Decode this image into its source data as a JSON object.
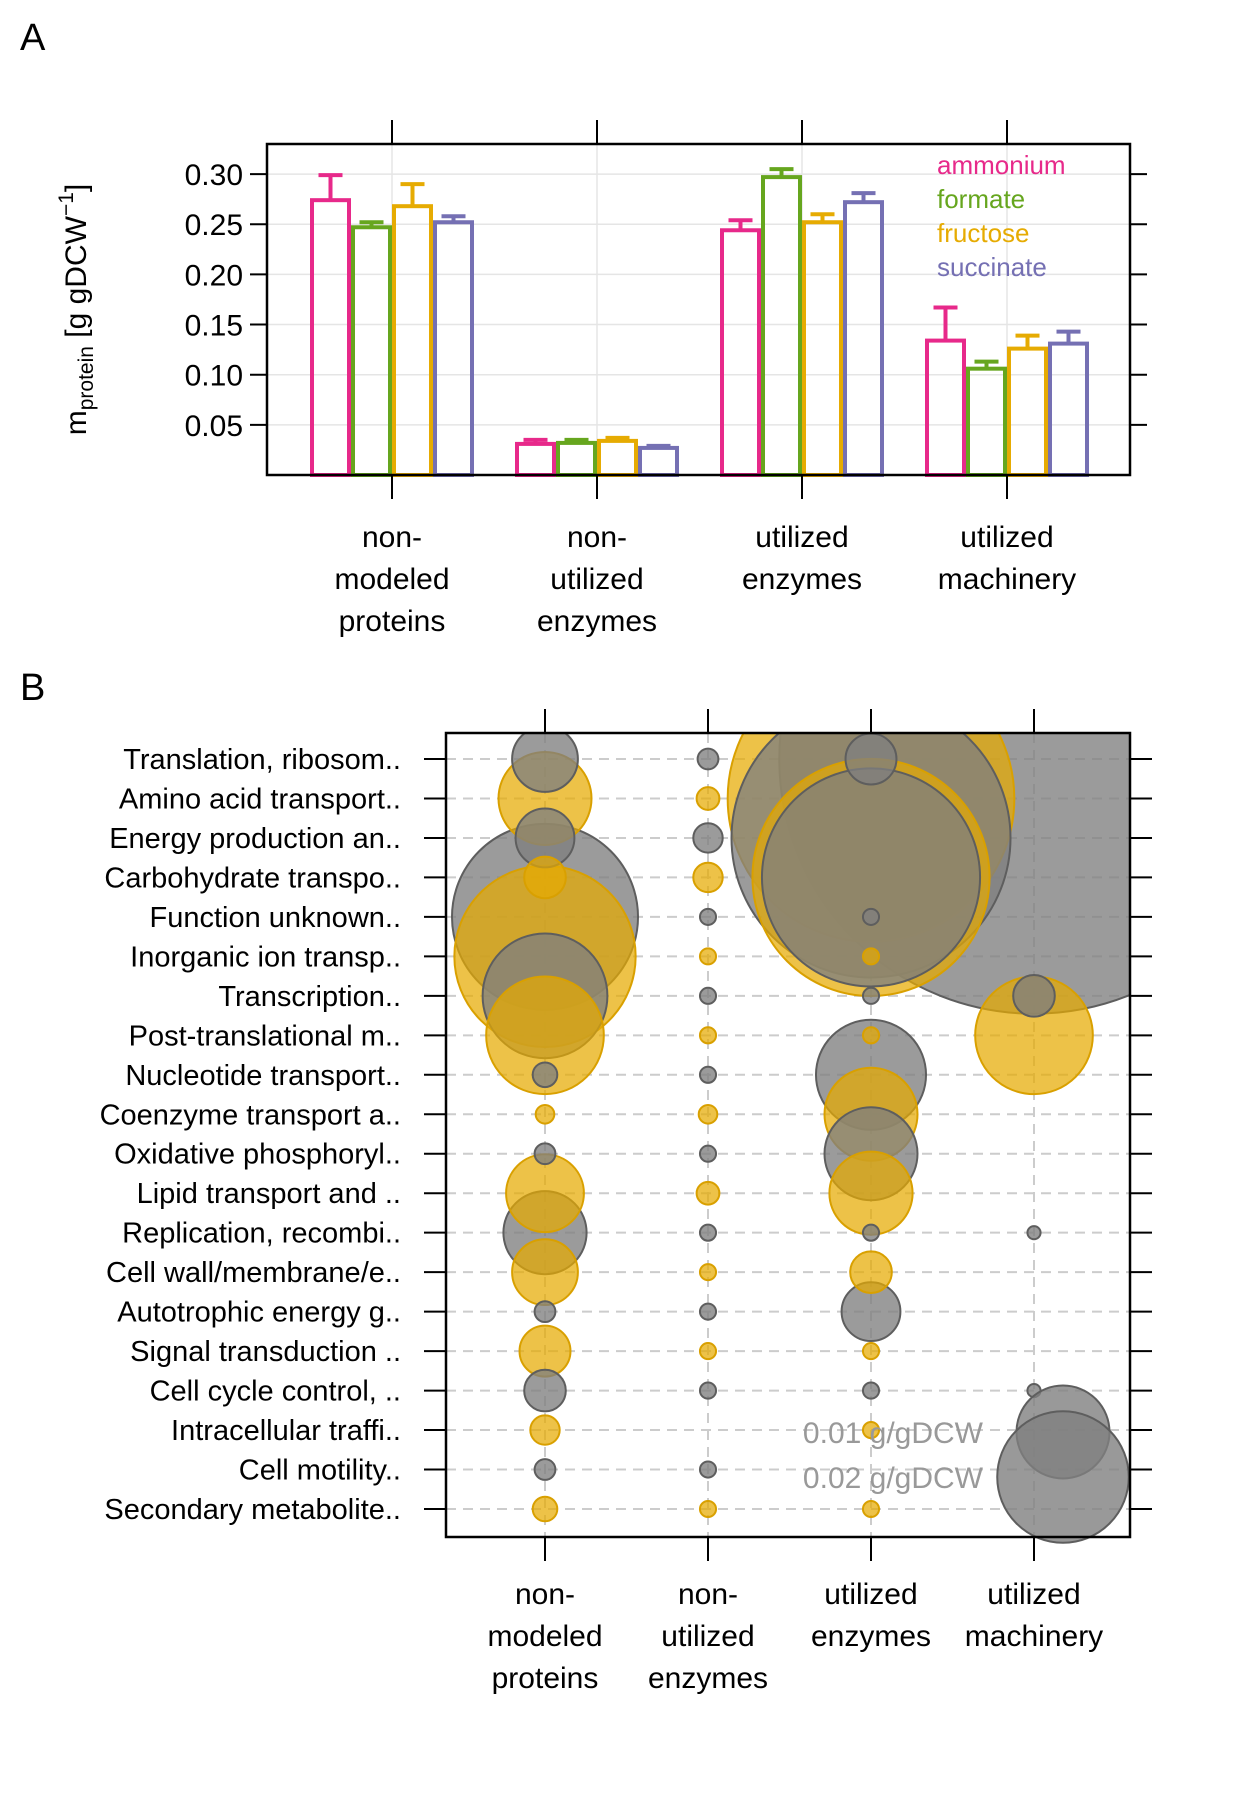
{
  "panels": {
    "a_label": "A",
    "b_label": "B"
  },
  "chart_data": [
    {
      "type": "bar",
      "panel": "A",
      "ylabel": {
        "main": "m",
        "sub": "protein",
        "unit_prefix": " [g gDCW",
        "unit_sup": "−1",
        "unit_suffix": "]"
      },
      "ylim": [
        0,
        0.33
      ],
      "yticks": [
        "0.05",
        "0.10",
        "0.15",
        "0.20",
        "0.25",
        "0.30"
      ],
      "grid": true,
      "legend_position": "top-right",
      "categories": [
        [
          "non-",
          "modeled",
          "proteins"
        ],
        [
          "non-",
          "utilized",
          "enzymes"
        ],
        [
          "utilized",
          "enzymes"
        ],
        [
          "utilized",
          "machinery"
        ]
      ],
      "series": [
        {
          "name": "ammonium",
          "color": "#e7298a",
          "values": [
            0.274,
            0.031,
            0.244,
            0.134
          ],
          "errors": [
            0.025,
            0.004,
            0.01,
            0.033
          ]
        },
        {
          "name": "formate",
          "color": "#66a61e",
          "values": [
            0.247,
            0.032,
            0.297,
            0.106
          ],
          "errors": [
            0.005,
            0.003,
            0.008,
            0.007
          ]
        },
        {
          "name": "fructose",
          "color": "#e6ab02",
          "values": [
            0.268,
            0.034,
            0.252,
            0.126
          ],
          "errors": [
            0.022,
            0.003,
            0.008,
            0.013
          ]
        },
        {
          "name": "succinate",
          "color": "#7570b3",
          "values": [
            0.252,
            0.027,
            0.272,
            0.131
          ],
          "errors": [
            0.006,
            0.002,
            0.009,
            0.012
          ]
        }
      ]
    },
    {
      "type": "scatter",
      "subtype": "bubble",
      "panel": "B",
      "grid": true,
      "x_categories": [
        [
          "non-",
          "modeled",
          "proteins"
        ],
        [
          "non-",
          "utilized",
          "enzymes"
        ],
        [
          "utilized",
          "enzymes"
        ],
        [
          "utilized",
          "machinery"
        ]
      ],
      "y_categories": [
        "Translation, ribosom..",
        "Amino acid transport..",
        "Energy production an..",
        "Carbohydrate transpo..",
        "Function unknown..",
        "Inorganic ion transp..",
        "Transcription..",
        "Post-translational m..",
        "Nucleotide transport..",
        "Coenzyme transport a..",
        "Oxidative phosphoryl..",
        "Lipid transport and ..",
        "Replication, recombi..",
        "Cell wall/membrane/e..",
        "Autotrophic energy g..",
        "Signal transduction ..",
        "Cell cycle control, ..",
        "Intracellular traffi..",
        "Cell motility..",
        "Secondary metabolite.."
      ],
      "colors": {
        "gray": "#7f7f7f",
        "gold": "#e6ab02"
      },
      "size_legend": [
        {
          "label": "0.01 g/gDCW",
          "value": 0.01
        },
        {
          "label": "0.02 g/gDCW",
          "value": 0.02
        }
      ],
      "values_gray": [
        [
          0.005,
          0.0005,
          0.003,
          0.3
        ],
        [
          0,
          0,
          0,
          0
        ],
        [
          0.004,
          0.001,
          0.09,
          0
        ],
        [
          0,
          0,
          0.055,
          0
        ],
        [
          0.04,
          0.0003,
          0.0003,
          0
        ],
        [
          0,
          0,
          0,
          0
        ],
        [
          0.018,
          0.0003,
          0.0003,
          0.002
        ],
        [
          0,
          0,
          0,
          0
        ],
        [
          0.0007,
          0.0003,
          0.014,
          0
        ],
        [
          0,
          0,
          0,
          0
        ],
        [
          0.0005,
          0.0003,
          0.01,
          0
        ],
        [
          0,
          0,
          0,
          0
        ],
        [
          0.008,
          0.0003,
          0.0003,
          0.0002
        ],
        [
          0,
          0,
          0,
          0
        ],
        [
          0.0005,
          0.0003,
          0.004,
          0
        ],
        [
          0,
          0,
          0,
          0
        ],
        [
          0.002,
          0.0003,
          0.0003,
          0.0002
        ],
        [
          0,
          0,
          0,
          0
        ],
        [
          0.0005,
          0.0003,
          0,
          0
        ],
        [
          0,
          0,
          0,
          0
        ]
      ],
      "values_gold": [
        [
          0,
          0,
          0,
          0
        ],
        [
          0.01,
          0.0006,
          0.095,
          0
        ],
        [
          0,
          0,
          0,
          0
        ],
        [
          0.002,
          0.001,
          0.065,
          0
        ],
        [
          0,
          0,
          0,
          0
        ],
        [
          0.038,
          0.0003,
          0.0003,
          0
        ],
        [
          0,
          0,
          0,
          0
        ],
        [
          0.016,
          0.0003,
          0.0003,
          0.016
        ],
        [
          0,
          0,
          0,
          0
        ],
        [
          0.0004,
          0.0004,
          0.01,
          0
        ],
        [
          0,
          0,
          0,
          0
        ],
        [
          0.007,
          0.0006,
          0.008,
          0
        ],
        [
          0,
          0,
          0,
          0
        ],
        [
          0.005,
          0.0003,
          0.002,
          0
        ],
        [
          0,
          0,
          0,
          0
        ],
        [
          0.003,
          0.0003,
          0.0003,
          0
        ],
        [
          0,
          0,
          0,
          0
        ],
        [
          0.001,
          0,
          0.0003,
          0
        ],
        [
          0,
          0,
          0,
          0
        ],
        [
          0.0007,
          0.0003,
          0.0003,
          0
        ]
      ]
    }
  ]
}
